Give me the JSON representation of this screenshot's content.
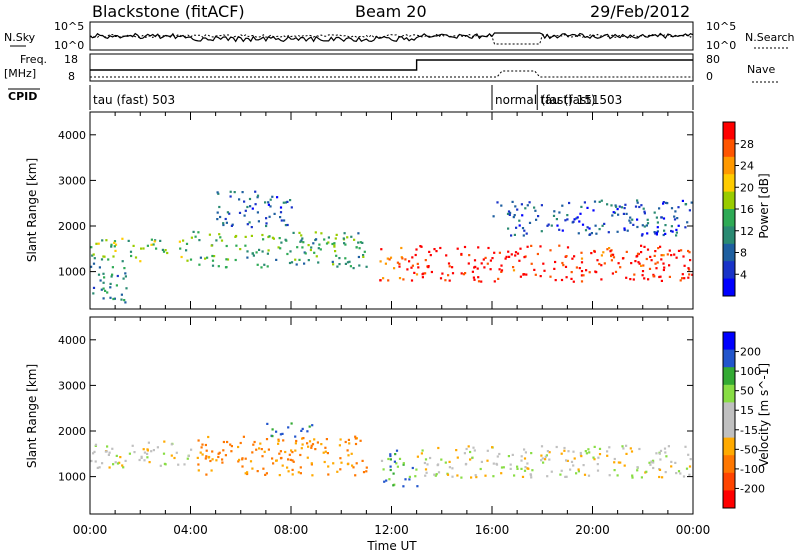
{
  "header": {
    "station": "Blackstone (fitACF)",
    "beam": "Beam 20",
    "date": "29/Feb/2012"
  },
  "panel_labels": {
    "nsky": "N.Sky",
    "nsearch": "N.Search",
    "freq_line1": "Freq.",
    "freq_line2": "[MHz]",
    "nave": "Nave",
    "cpid": "CPID"
  },
  "noise_axis": {
    "left_top": "10^5",
    "left_bottom": "10^0",
    "right_top": "10^5",
    "right_bottom": "10^0"
  },
  "freq_axis": {
    "left_top": "18",
    "left_bottom": "8",
    "right_top": "80",
    "right_bottom": "0"
  },
  "cpid_segments": [
    {
      "label": "tau (fast) 503",
      "start_hour": 0,
      "end_hour": 16.0
    },
    {
      "label": "normal (fast) 151",
      "start_hour": 16.0,
      "end_hour": 17.8
    },
    {
      "label": "tau (fast) 503",
      "start_hour": 17.8,
      "end_hour": 24
    }
  ],
  "chart_data": [
    {
      "type": "heatmap",
      "parameter": "power",
      "ylabel": "Slant Range [km]",
      "xlabel": "",
      "xlim": [
        0,
        24
      ],
      "ylim": [
        180,
        4500
      ],
      "yticks": [
        1000,
        2000,
        3000,
        4000
      ],
      "colorbar": {
        "label": "Power [dB]",
        "ticks": [
          "28",
          "24",
          "20",
          "16",
          "12",
          "8",
          "4"
        ],
        "colors": [
          "#ff0000",
          "#ff5500",
          "#ff9900",
          "#ffcc00",
          "#99cc00",
          "#2eaa55",
          "#2a8a72",
          "#1e5fa0",
          "#1933c8",
          "#0000ff"
        ]
      },
      "echo_bands": [
        {
          "hours": [
            0,
            1.5
          ],
          "range_km": [
            300,
            1200
          ],
          "level": 8
        },
        {
          "hours": [
            0,
            4
          ],
          "range_km": [
            1250,
            1750
          ],
          "level": 14
        },
        {
          "hours": [
            4,
            11
          ],
          "range_km": [
            1100,
            1900
          ],
          "level": 12
        },
        {
          "hours": [
            5,
            8
          ],
          "range_km": [
            2000,
            2800
          ],
          "level": 6
        },
        {
          "hours": [
            11.5,
            13
          ],
          "range_km": [
            800,
            1600
          ],
          "level": 26
        },
        {
          "hours": [
            13,
            24
          ],
          "range_km": [
            800,
            1600
          ],
          "level": 28
        },
        {
          "hours": [
            16,
            24
          ],
          "range_km": [
            1800,
            2600
          ],
          "level": 5
        }
      ]
    },
    {
      "type": "heatmap",
      "parameter": "velocity",
      "ylabel": "Slant Range [km]",
      "xlabel": "Time UT",
      "xlim": [
        0,
        24
      ],
      "ylim": [
        180,
        4500
      ],
      "yticks": [
        1000,
        2000,
        3000,
        4000
      ],
      "xticks": [
        "00:00",
        "04:00",
        "08:00",
        "12:00",
        "16:00",
        "20:00",
        "00:00"
      ],
      "colorbar": {
        "label": "Velocity [m s^-1]",
        "ticks": [
          "200",
          "100",
          "50",
          "15",
          "-15",
          "-50",
          "-100",
          "-200"
        ],
        "colors": [
          "#0000ff",
          "#2255cc",
          "#33aa33",
          "#88dd44",
          "#c0c0c0",
          "#c0c0c0",
          "#ffaa00",
          "#ff7700",
          "#ff4400",
          "#ff0000"
        ]
      },
      "echo_bands": [
        {
          "hours": [
            0,
            4
          ],
          "range_km": [
            1200,
            1800
          ],
          "vel": 0
        },
        {
          "hours": [
            4,
            11
          ],
          "range_km": [
            1050,
            1900
          ],
          "vel": -60
        },
        {
          "hours": [
            7,
            9
          ],
          "range_km": [
            1900,
            2200
          ],
          "vel": 60
        },
        {
          "hours": [
            11.5,
            13
          ],
          "range_km": [
            800,
            1600
          ],
          "vel": 40
        },
        {
          "hours": [
            13,
            24
          ],
          "range_km": [
            1000,
            1700
          ],
          "vel": 0
        }
      ]
    }
  ]
}
